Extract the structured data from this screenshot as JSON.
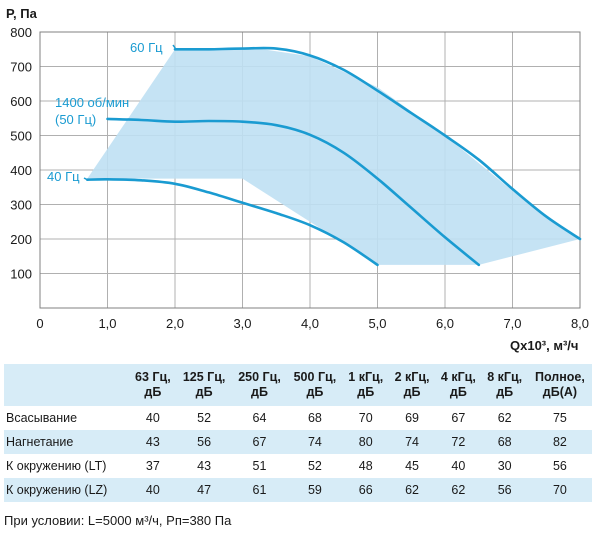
{
  "chart_data": {
    "type": "line",
    "ylabel": "P, Па",
    "xlabel": "Qx10³, м³/ч",
    "xlim": [
      0,
      8
    ],
    "ylim": [
      100,
      800
    ],
    "x_ticks": [
      "0",
      "1,0",
      "2,0",
      "3,0",
      "4,0",
      "5,0",
      "6,0",
      "7,0",
      "8,0"
    ],
    "y_ticks": [
      "100",
      "200",
      "300",
      "400",
      "500",
      "600",
      "700",
      "800"
    ],
    "grid": true,
    "colors": {
      "curve": "#1a9bd1",
      "area": "#bfe0f3",
      "grid": "#b0b0b0"
    },
    "operating_area": {
      "x": [
        0.7,
        2.0,
        3.2,
        4.0,
        5.0,
        6.0,
        7.0,
        8.0,
        6.5,
        5.0,
        3.0
      ],
      "y": [
        375,
        750,
        753,
        730,
        640,
        500,
        340,
        200,
        125,
        125,
        375
      ]
    },
    "series": [
      {
        "name": "60 Гц",
        "label_lines": [
          "60 Гц"
        ],
        "x": [
          2.0,
          2.5,
          3.0,
          3.5,
          4.0,
          4.5,
          5.0,
          5.5,
          6.0,
          6.5,
          7.0,
          7.5,
          8.0
        ],
        "y": [
          750,
          750,
          752,
          752,
          732,
          690,
          630,
          565,
          500,
          430,
          345,
          265,
          200
        ]
      },
      {
        "name": "1400 об/мин (50 Гц)",
        "label_lines": [
          "1400 об/мин",
          "(50 Гц)"
        ],
        "x": [
          1.0,
          1.5,
          2.0,
          2.5,
          3.0,
          3.5,
          4.0,
          4.5,
          5.0,
          5.5,
          6.0,
          6.5
        ],
        "y": [
          548,
          545,
          540,
          542,
          540,
          530,
          502,
          450,
          375,
          290,
          205,
          125
        ]
      },
      {
        "name": "40 Гц",
        "label_lines": [
          "40 Гц"
        ],
        "x": [
          0.7,
          1.0,
          1.5,
          2.0,
          2.5,
          3.0,
          3.5,
          4.0,
          4.5,
          5.0
        ],
        "y": [
          372,
          373,
          370,
          360,
          335,
          305,
          275,
          240,
          190,
          125
        ]
      }
    ]
  },
  "table": {
    "headers": [
      "",
      "63 Гц,\nдБ",
      "125 Гц,\nдБ",
      "250 Гц,\nдБ",
      "500 Гц,\nдБ",
      "1 кГц,\nдБ",
      "2 кГц,\nдБ",
      "4 кГц,\nдБ",
      "8 кГц,\nдБ",
      "Полное,\nдБ(А)"
    ],
    "rows": [
      [
        "Всасывание",
        "40",
        "52",
        "64",
        "68",
        "70",
        "69",
        "67",
        "62",
        "75"
      ],
      [
        "Нагнетание",
        "43",
        "56",
        "67",
        "74",
        "80",
        "74",
        "72",
        "68",
        "82"
      ],
      [
        "К окружению (LT)",
        "37",
        "43",
        "51",
        "52",
        "48",
        "45",
        "40",
        "30",
        "56"
      ],
      [
        "К окружению (LZ)",
        "40",
        "47",
        "61",
        "59",
        "66",
        "62",
        "62",
        "56",
        "70"
      ]
    ]
  },
  "footnote": "При условии: L=5000 м³/ч, Рп=380 Па"
}
